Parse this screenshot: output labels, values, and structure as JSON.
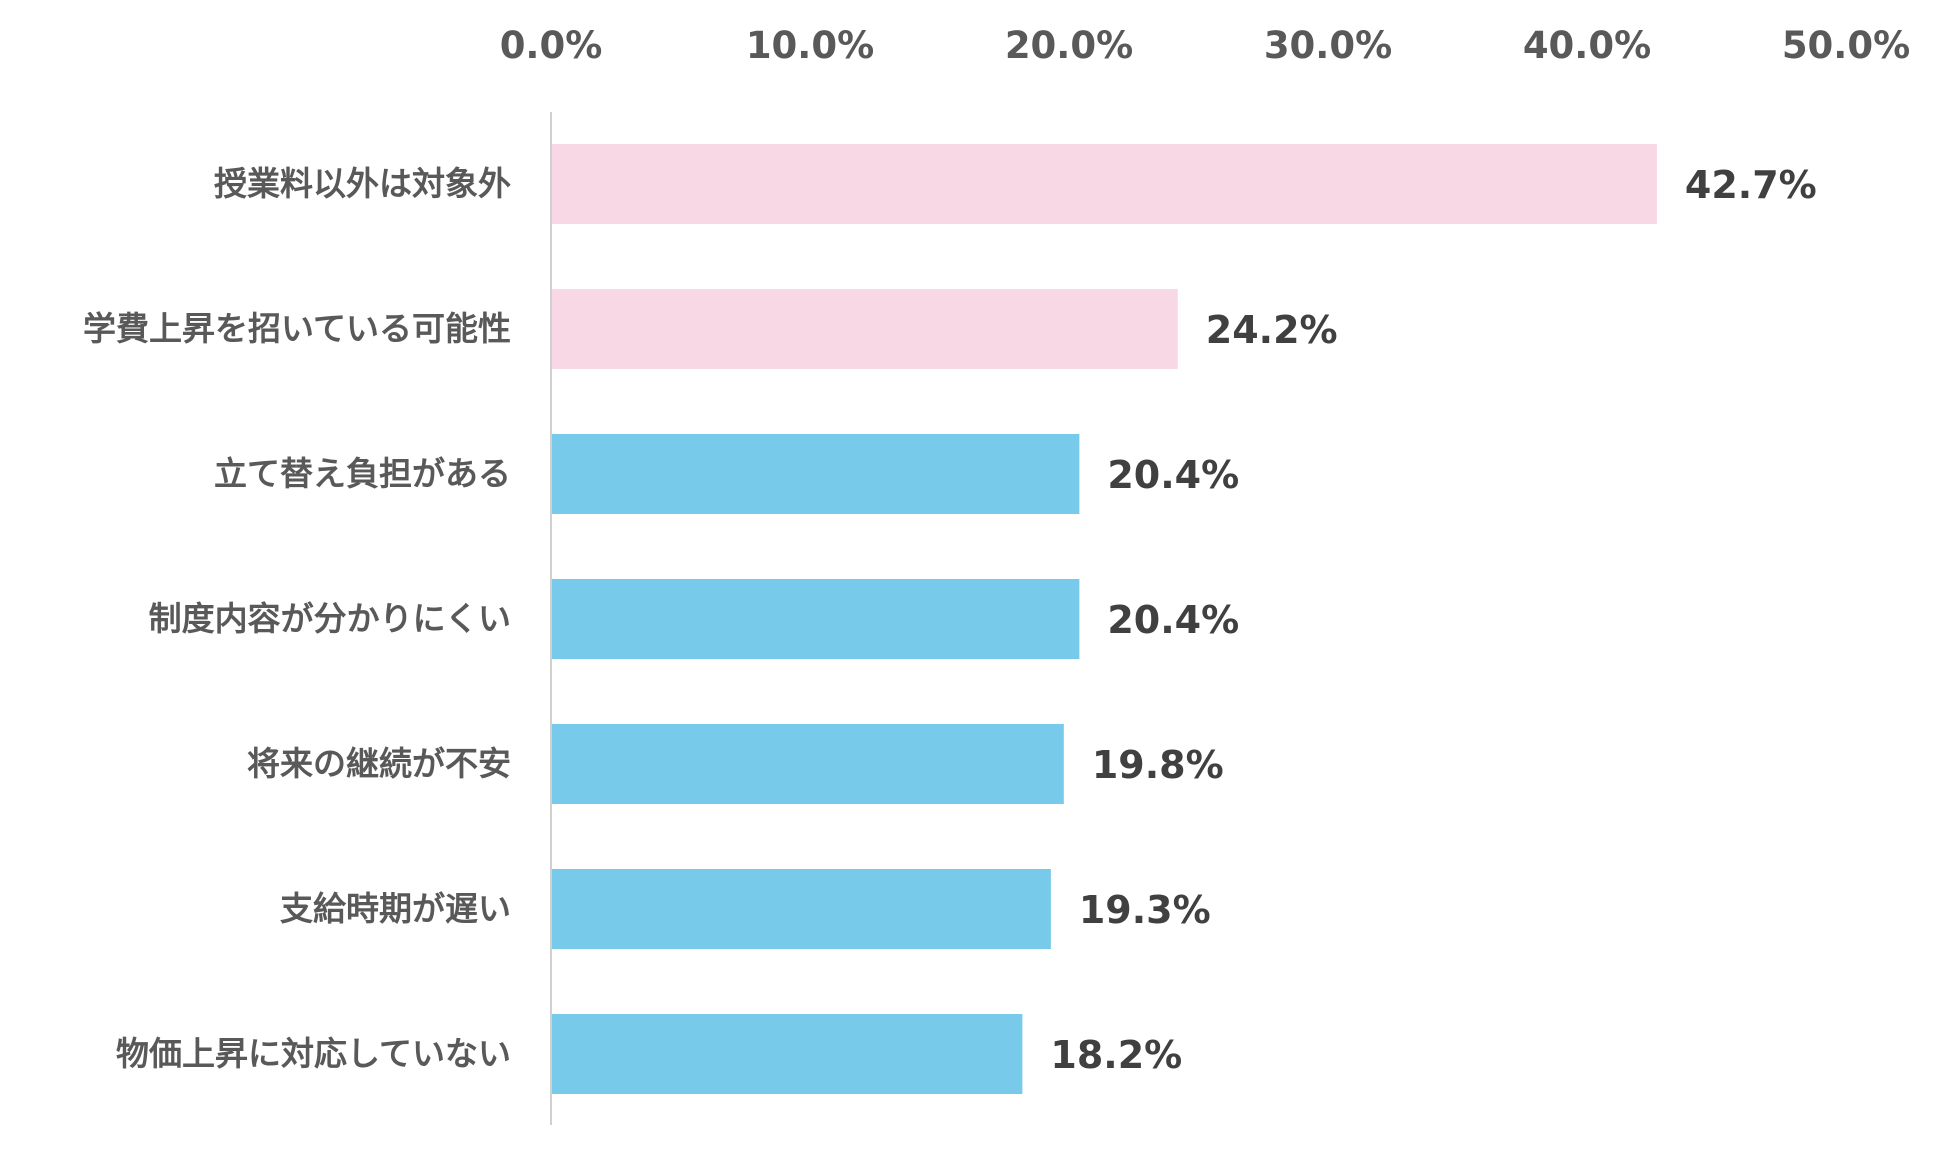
{
  "chart_data": {
    "type": "bar",
    "orientation": "horizontal",
    "title": "",
    "xlabel": "",
    "ylabel": "",
    "xlim": [
      0,
      50
    ],
    "x_ticks": [
      {
        "value": 0,
        "label": "0.0%"
      },
      {
        "value": 10,
        "label": "10.0%"
      },
      {
        "value": 20,
        "label": "20.0%"
      },
      {
        "value": 30,
        "label": "30.0%"
      },
      {
        "value": 40,
        "label": "40.0%"
      },
      {
        "value": 50,
        "label": "50.0%"
      }
    ],
    "tick_position": "top",
    "grid": false,
    "legend": "none",
    "categories": [
      "授業料以外は対象外",
      "学費上昇を招いている可能性",
      "立て替え負担がある",
      "制度内容が分かりにくい",
      "将来の継続が不安",
      "支給時期が遅い",
      "物価上昇に対応していない"
    ],
    "values": [
      42.7,
      24.2,
      20.4,
      20.4,
      19.8,
      19.3,
      18.2
    ],
    "value_labels": [
      "42.7%",
      "24.2%",
      "20.4%",
      "20.4%",
      "19.8%",
      "19.3%",
      "18.2%"
    ],
    "bar_colors": [
      "#F9D8E6",
      "#F9D8E6",
      "#78CAEA",
      "#78CAEA",
      "#78CAEA",
      "#78CAEA",
      "#78CAEA"
    ],
    "axis_color": "#D0D0D0"
  }
}
